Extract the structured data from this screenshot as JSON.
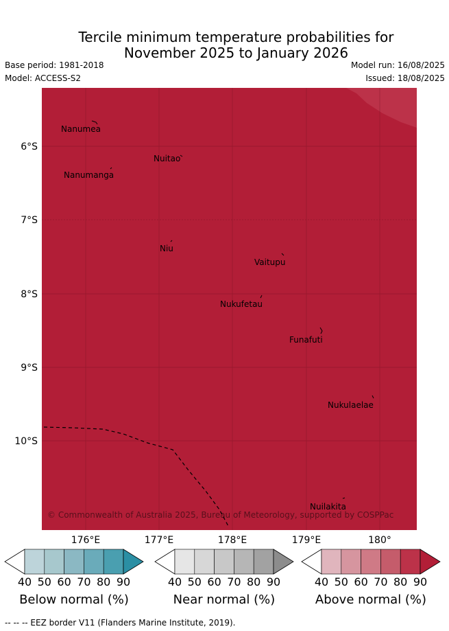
{
  "title_line1": "Tercile minimum temperature probabilities for",
  "title_line2": "November 2025 to January 2026",
  "base_period": "Base period: 1981-2018",
  "model": "Model: ACCESS-S2",
  "model_run": "Model run: 16/08/2025",
  "issued": "Issued: 18/08/2025",
  "lat_labels": [
    "6°S",
    "7°S",
    "8°S",
    "9°S",
    "10°S"
  ],
  "lon_labels": [
    "176°E",
    "177°E",
    "178°E",
    "179°E",
    "180°"
  ],
  "places": [
    "Nanumea",
    "Nuitao",
    "Nanumanga",
    "Niu",
    "Vaitupu",
    "Nukufetau",
    "Funafuti",
    "Nukulaelae",
    "Nuilakita"
  ],
  "copyright": "© Commonwealth of Australia 2025, Bureau of Meteorology, supported by COSPPac",
  "colorbars": [
    {
      "label": "Below normal (%)",
      "ticks": [
        "40",
        "50",
        "60",
        "70",
        "80",
        "90"
      ],
      "colors": [
        "#ffffff",
        "#bdd4da",
        "#a7c8cd",
        "#8bb8c3",
        "#6aabba",
        "#4a9fb0",
        "#2b8fa4"
      ]
    },
    {
      "label": "Near normal (%)",
      "ticks": [
        "40",
        "50",
        "60",
        "70",
        "80",
        "90"
      ],
      "colors": [
        "#ffffff",
        "#e6e6e6",
        "#d7d7d7",
        "#c8c8c8",
        "#b6b6b6",
        "#a2a2a2",
        "#8c8c8c"
      ]
    },
    {
      "label": "Above normal (%)",
      "ticks": [
        "40",
        "50",
        "60",
        "70",
        "80",
        "90"
      ],
      "colors": [
        "#ffffff",
        "#e0b5bd",
        "#d6959f",
        "#cf7a86",
        "#c55c6b",
        "#bc3249",
        "#b21e37"
      ]
    }
  ],
  "map_colors": {
    "main": "#b21e37",
    "corner": "#bc3249"
  },
  "footer": "--  --  -- EEZ border V11 (Flanders Marine Institute, 2019)."
}
